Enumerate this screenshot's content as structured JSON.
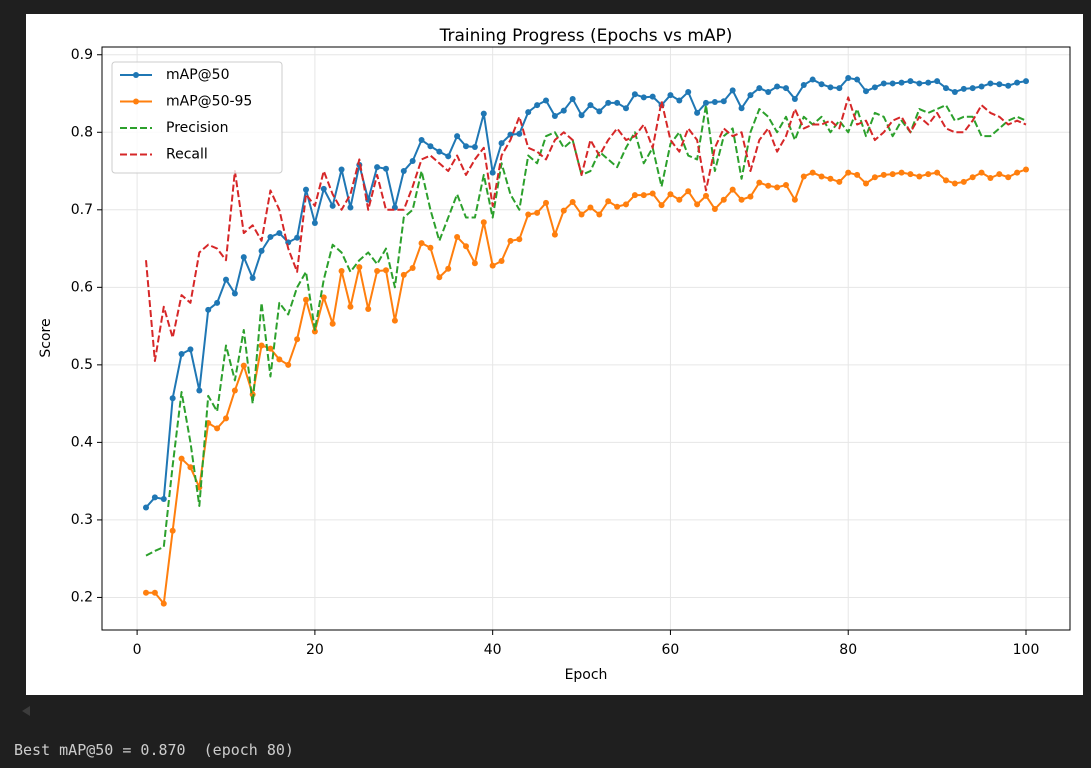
{
  "chart_data": {
    "type": "line",
    "title": "Training Progress (Epochs vs mAP)",
    "xlabel": "Epoch",
    "ylabel": "Score",
    "x": [
      1,
      2,
      3,
      4,
      5,
      6,
      7,
      8,
      9,
      10,
      11,
      12,
      13,
      14,
      15,
      16,
      17,
      18,
      19,
      20,
      21,
      22,
      23,
      24,
      25,
      26,
      27,
      28,
      29,
      30,
      31,
      32,
      33,
      34,
      35,
      36,
      37,
      38,
      39,
      40,
      41,
      42,
      43,
      44,
      45,
      46,
      47,
      48,
      49,
      50,
      51,
      52,
      53,
      54,
      55,
      56,
      57,
      58,
      59,
      60,
      61,
      62,
      63,
      64,
      65,
      66,
      67,
      68,
      69,
      70,
      71,
      72,
      73,
      74,
      75,
      76,
      77,
      78,
      79,
      80,
      81,
      82,
      83,
      84,
      85,
      86,
      87,
      88,
      89,
      90,
      91,
      92,
      93,
      94,
      95,
      96,
      97,
      98,
      99,
      100
    ],
    "series": [
      {
        "name": "mAP@50",
        "color": "#1f77b4",
        "linestyle": "solid",
        "marker": true,
        "values": [
          0.316,
          0.329,
          0.327,
          0.457,
          0.514,
          0.52,
          0.467,
          0.571,
          0.58,
          0.61,
          0.592,
          0.639,
          0.612,
          0.647,
          0.665,
          0.67,
          0.658,
          0.664,
          0.726,
          0.683,
          0.727,
          0.705,
          0.752,
          0.703,
          0.758,
          0.713,
          0.755,
          0.753,
          0.703,
          0.75,
          0.763,
          0.79,
          0.782,
          0.775,
          0.769,
          0.795,
          0.782,
          0.781,
          0.824,
          0.748,
          0.786,
          0.797,
          0.798,
          0.826,
          0.835,
          0.841,
          0.821,
          0.828,
          0.843,
          0.822,
          0.835,
          0.827,
          0.838,
          0.838,
          0.831,
          0.849,
          0.845,
          0.846,
          0.835,
          0.848,
          0.841,
          0.852,
          0.825,
          0.838,
          0.839,
          0.84,
          0.854,
          0.831,
          0.848,
          0.857,
          0.852,
          0.859,
          0.857,
          0.843,
          0.861,
          0.868,
          0.862,
          0.858,
          0.857,
          0.87,
          0.868,
          0.853,
          0.858,
          0.863,
          0.863,
          0.864,
          0.866,
          0.863,
          0.864,
          0.866,
          0.857,
          0.852,
          0.856,
          0.857,
          0.859,
          0.863,
          0.862,
          0.86,
          0.864,
          0.866
        ]
      },
      {
        "name": "mAP@50-95",
        "color": "#ff7f0e",
        "linestyle": "solid",
        "marker": true,
        "values": [
          0.206,
          0.206,
          0.192,
          0.286,
          0.379,
          0.368,
          0.342,
          0.425,
          0.418,
          0.431,
          0.467,
          0.499,
          0.462,
          0.525,
          0.521,
          0.507,
          0.5,
          0.533,
          0.584,
          0.543,
          0.587,
          0.553,
          0.621,
          0.575,
          0.626,
          0.572,
          0.621,
          0.622,
          0.557,
          0.616,
          0.625,
          0.657,
          0.651,
          0.613,
          0.624,
          0.665,
          0.653,
          0.631,
          0.684,
          0.628,
          0.634,
          0.66,
          0.662,
          0.694,
          0.696,
          0.709,
          0.668,
          0.699,
          0.71,
          0.694,
          0.703,
          0.694,
          0.711,
          0.704,
          0.707,
          0.719,
          0.719,
          0.721,
          0.706,
          0.72,
          0.713,
          0.724,
          0.707,
          0.718,
          0.701,
          0.713,
          0.726,
          0.713,
          0.717,
          0.735,
          0.731,
          0.729,
          0.732,
          0.713,
          0.743,
          0.748,
          0.743,
          0.74,
          0.736,
          0.748,
          0.745,
          0.734,
          0.742,
          0.745,
          0.746,
          0.748,
          0.746,
          0.743,
          0.746,
          0.748,
          0.738,
          0.734,
          0.736,
          0.742,
          0.748,
          0.741,
          0.746,
          0.742,
          0.748,
          0.752
        ]
      },
      {
        "name": "Precision",
        "color": "#2ca02c",
        "linestyle": "dashed",
        "marker": false,
        "values": [
          0.254,
          0.26,
          0.265,
          0.37,
          0.465,
          0.4,
          0.318,
          0.46,
          0.44,
          0.525,
          0.48,
          0.545,
          0.45,
          0.58,
          0.485,
          0.58,
          0.565,
          0.6,
          0.62,
          0.545,
          0.61,
          0.655,
          0.645,
          0.62,
          0.635,
          0.645,
          0.63,
          0.65,
          0.6,
          0.69,
          0.7,
          0.75,
          0.7,
          0.66,
          0.69,
          0.72,
          0.69,
          0.69,
          0.745,
          0.69,
          0.76,
          0.72,
          0.7,
          0.77,
          0.76,
          0.795,
          0.8,
          0.78,
          0.79,
          0.745,
          0.75,
          0.775,
          0.765,
          0.755,
          0.78,
          0.8,
          0.76,
          0.78,
          0.73,
          0.785,
          0.8,
          0.77,
          0.765,
          0.835,
          0.75,
          0.795,
          0.805,
          0.74,
          0.8,
          0.83,
          0.82,
          0.8,
          0.82,
          0.79,
          0.82,
          0.81,
          0.82,
          0.8,
          0.815,
          0.8,
          0.83,
          0.795,
          0.825,
          0.82,
          0.795,
          0.815,
          0.8,
          0.83,
          0.825,
          0.83,
          0.835,
          0.815,
          0.82,
          0.82,
          0.795,
          0.795,
          0.805,
          0.815,
          0.82,
          0.815
        ]
      },
      {
        "name": "Recall",
        "color": "#d62728",
        "linestyle": "dashed",
        "marker": false,
        "values": [
          0.635,
          0.505,
          0.575,
          0.535,
          0.59,
          0.58,
          0.645,
          0.655,
          0.65,
          0.635,
          0.75,
          0.67,
          0.68,
          0.66,
          0.725,
          0.7,
          0.65,
          0.62,
          0.72,
          0.705,
          0.75,
          0.72,
          0.7,
          0.72,
          0.765,
          0.7,
          0.745,
          0.7,
          0.7,
          0.7,
          0.73,
          0.765,
          0.77,
          0.76,
          0.75,
          0.77,
          0.745,
          0.765,
          0.78,
          0.705,
          0.77,
          0.79,
          0.82,
          0.78,
          0.775,
          0.765,
          0.79,
          0.8,
          0.79,
          0.745,
          0.79,
          0.77,
          0.79,
          0.805,
          0.79,
          0.795,
          0.81,
          0.78,
          0.84,
          0.79,
          0.775,
          0.805,
          0.79,
          0.725,
          0.78,
          0.805,
          0.795,
          0.8,
          0.75,
          0.79,
          0.805,
          0.775,
          0.795,
          0.83,
          0.805,
          0.81,
          0.81,
          0.815,
          0.805,
          0.845,
          0.81,
          0.815,
          0.79,
          0.8,
          0.815,
          0.82,
          0.8,
          0.82,
          0.81,
          0.825,
          0.805,
          0.8,
          0.8,
          0.815,
          0.835,
          0.825,
          0.82,
          0.81,
          0.815,
          0.81
        ]
      }
    ],
    "xlim": [
      -3.95,
      104.95
    ],
    "ylim": [
      0.158,
      0.91
    ],
    "xticks": [
      0,
      20,
      40,
      60,
      80,
      100
    ],
    "yticks": [
      0.2,
      0.3,
      0.4,
      0.5,
      0.6,
      0.7,
      0.8,
      0.9
    ],
    "grid": true,
    "legend": "upper left"
  },
  "output": {
    "text": "Best mAP@50 = 0.870  (epoch 80)"
  }
}
